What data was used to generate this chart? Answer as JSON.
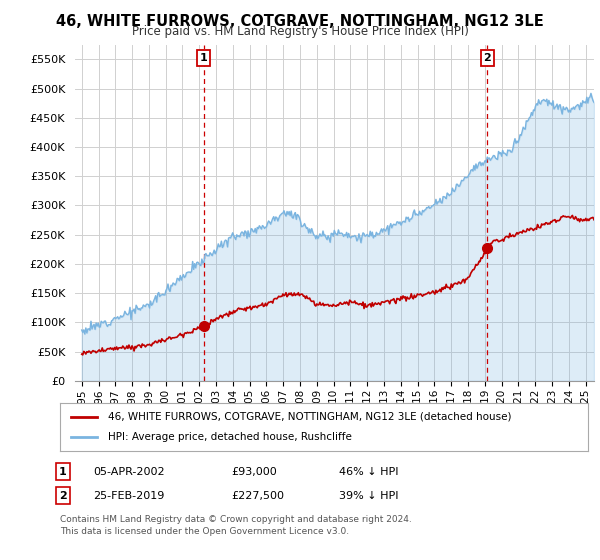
{
  "title": "46, WHITE FURROWS, COTGRAVE, NOTTINGHAM, NG12 3LE",
  "subtitle": "Price paid vs. HM Land Registry's House Price Index (HPI)",
  "ylim": [
    0,
    575000
  ],
  "yticks": [
    0,
    50000,
    100000,
    150000,
    200000,
    250000,
    300000,
    350000,
    400000,
    450000,
    500000,
    550000
  ],
  "ytick_labels": [
    "£0",
    "£50K",
    "£100K",
    "£150K",
    "£200K",
    "£250K",
    "£300K",
    "£350K",
    "£400K",
    "£450K",
    "£500K",
    "£550K"
  ],
  "sale1_x": 2002.26,
  "sale1_y": 93000,
  "sale2_x": 2019.15,
  "sale2_y": 227500,
  "hpi_color": "#7ab4e0",
  "price_color": "#c00000",
  "vline_color": "#cc0000",
  "legend_label_price": "46, WHITE FURROWS, COTGRAVE, NOTTINGHAM, NG12 3LE (detached house)",
  "legend_label_hpi": "HPI: Average price, detached house, Rushcliffe",
  "footnote1": "Contains HM Land Registry data © Crown copyright and database right 2024.",
  "footnote2": "This data is licensed under the Open Government Licence v3.0.",
  "background_color": "#ffffff",
  "grid_color": "#d0d0d0",
  "xlim_left": 1994.6,
  "xlim_right": 2025.5
}
